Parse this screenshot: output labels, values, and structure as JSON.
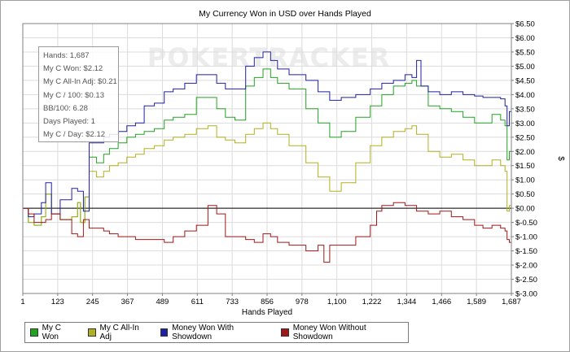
{
  "chart_data": {
    "type": "line",
    "title": "My Currency Won in USD over Hands Played",
    "xlabel": "Hands Played",
    "ylabel": "$",
    "watermark": "POKERTRACKER",
    "xlim": [
      1,
      1687
    ],
    "ylim": [
      -3.0,
      6.5
    ],
    "x_ticks": [
      "1",
      "123",
      "245",
      "367",
      "489",
      "611",
      "733",
      "856",
      "978",
      "1,100",
      "1,222",
      "1,344",
      "1,466",
      "1,589",
      "1,687"
    ],
    "y_ticks": [
      "$6.50",
      "$6.00",
      "$5.50",
      "$5.00",
      "$4.50",
      "$4.00",
      "$3.50",
      "$3.00",
      "$2.50",
      "$2.00",
      "$1.50",
      "$1.00",
      "$0.50",
      "$0.00",
      "$-0.50",
      "$-1.00",
      "$-1.50",
      "$-2.00",
      "$-2.50",
      "$-3.00"
    ],
    "grid": true,
    "legend_position": "bottom",
    "series": [
      {
        "name": "My C Won",
        "color": "#22a322",
        "points": [
          [
            1,
            0
          ],
          [
            20,
            -0.5
          ],
          [
            40,
            -0.6
          ],
          [
            65,
            -0.3
          ],
          [
            80,
            0.5
          ],
          [
            100,
            -0.2
          ],
          [
            130,
            -0.4
          ],
          [
            170,
            -0.3
          ],
          [
            190,
            0.2
          ],
          [
            200,
            -0.5
          ],
          [
            215,
            0.4
          ],
          [
            230,
            1.8
          ],
          [
            255,
            1.6
          ],
          [
            280,
            1.9
          ],
          [
            300,
            2.1
          ],
          [
            330,
            2.3
          ],
          [
            360,
            2.5
          ],
          [
            390,
            2.6
          ],
          [
            420,
            2.7
          ],
          [
            455,
            2.8
          ],
          [
            489,
            3.1
          ],
          [
            520,
            3.2
          ],
          [
            560,
            3.3
          ],
          [
            600,
            3.9
          ],
          [
            640,
            3.9
          ],
          [
            670,
            3.5
          ],
          [
            700,
            3.2
          ],
          [
            733,
            3.1
          ],
          [
            770,
            4.3
          ],
          [
            800,
            4.6
          ],
          [
            830,
            4.9
          ],
          [
            856,
            4.6
          ],
          [
            880,
            4.4
          ],
          [
            920,
            4.2
          ],
          [
            978,
            3.5
          ],
          [
            1020,
            3.0
          ],
          [
            1060,
            2.5
          ],
          [
            1100,
            2.7
          ],
          [
            1150,
            3.2
          ],
          [
            1200,
            3.6
          ],
          [
            1240,
            4.0
          ],
          [
            1280,
            4.3
          ],
          [
            1320,
            4.4
          ],
          [
            1344,
            4.5
          ],
          [
            1360,
            4.3
          ],
          [
            1400,
            3.6
          ],
          [
            1440,
            3.5
          ],
          [
            1480,
            3.4
          ],
          [
            1520,
            3.2
          ],
          [
            1560,
            3.0
          ],
          [
            1589,
            3.0
          ],
          [
            1620,
            3.3
          ],
          [
            1650,
            3.1
          ],
          [
            1665,
            2.9
          ],
          [
            1672,
            1.7
          ],
          [
            1680,
            2.0
          ],
          [
            1687,
            2.12
          ]
        ]
      },
      {
        "name": "My C All-In Adj",
        "color": "#b0b020",
        "points": [
          [
            1,
            0
          ],
          [
            20,
            -0.5
          ],
          [
            40,
            -0.6
          ],
          [
            65,
            -0.3
          ],
          [
            80,
            0.5
          ],
          [
            100,
            -0.2
          ],
          [
            130,
            -0.4
          ],
          [
            170,
            -0.3
          ],
          [
            190,
            0.2
          ],
          [
            200,
            -0.5
          ],
          [
            215,
            0.4
          ],
          [
            230,
            1.3
          ],
          [
            255,
            1.1
          ],
          [
            280,
            1.3
          ],
          [
            300,
            1.5
          ],
          [
            330,
            1.6
          ],
          [
            360,
            1.8
          ],
          [
            390,
            1.9
          ],
          [
            420,
            2.1
          ],
          [
            455,
            2.2
          ],
          [
            489,
            2.4
          ],
          [
            520,
            2.5
          ],
          [
            560,
            2.6
          ],
          [
            600,
            2.8
          ],
          [
            640,
            2.9
          ],
          [
            670,
            2.5
          ],
          [
            700,
            2.4
          ],
          [
            733,
            2.3
          ],
          [
            770,
            2.6
          ],
          [
            800,
            2.8
          ],
          [
            830,
            3.0
          ],
          [
            856,
            2.8
          ],
          [
            880,
            2.6
          ],
          [
            920,
            2.2
          ],
          [
            978,
            1.6
          ],
          [
            1020,
            1.1
          ],
          [
            1060,
            0.6
          ],
          [
            1100,
            0.9
          ],
          [
            1150,
            1.6
          ],
          [
            1200,
            2.2
          ],
          [
            1240,
            2.5
          ],
          [
            1280,
            2.7
          ],
          [
            1320,
            2.8
          ],
          [
            1344,
            2.9
          ],
          [
            1360,
            2.6
          ],
          [
            1400,
            2.0
          ],
          [
            1440,
            1.8
          ],
          [
            1480,
            1.9
          ],
          [
            1520,
            1.7
          ],
          [
            1560,
            1.5
          ],
          [
            1589,
            1.5
          ],
          [
            1620,
            1.7
          ],
          [
            1650,
            1.5
          ],
          [
            1665,
            1.3
          ],
          [
            1672,
            -0.1
          ],
          [
            1680,
            0.1
          ],
          [
            1687,
            0.21
          ]
        ]
      },
      {
        "name": "Money Won With Showdown",
        "color": "#2020a0",
        "points": [
          [
            1,
            0
          ],
          [
            20,
            -0.3
          ],
          [
            40,
            -0.2
          ],
          [
            65,
            0.2
          ],
          [
            80,
            0.9
          ],
          [
            100,
            -0.2
          ],
          [
            130,
            0.3
          ],
          [
            170,
            0.7
          ],
          [
            190,
            0.6
          ],
          [
            210,
            -0.1
          ],
          [
            230,
            2.3
          ],
          [
            255,
            2.3
          ],
          [
            280,
            2.5
          ],
          [
            300,
            2.6
          ],
          [
            330,
            2.7
          ],
          [
            360,
            2.9
          ],
          [
            390,
            3.0
          ],
          [
            420,
            3.6
          ],
          [
            455,
            3.7
          ],
          [
            489,
            4.1
          ],
          [
            520,
            4.2
          ],
          [
            560,
            4.4
          ],
          [
            600,
            4.7
          ],
          [
            640,
            4.7
          ],
          [
            670,
            4.4
          ],
          [
            700,
            4.2
          ],
          [
            733,
            4.2
          ],
          [
            770,
            5.0
          ],
          [
            800,
            5.3
          ],
          [
            830,
            5.5
          ],
          [
            856,
            5.2
          ],
          [
            880,
            4.9
          ],
          [
            920,
            4.7
          ],
          [
            978,
            4.5
          ],
          [
            1020,
            4.1
          ],
          [
            1060,
            3.8
          ],
          [
            1100,
            3.9
          ],
          [
            1150,
            4.0
          ],
          [
            1200,
            4.2
          ],
          [
            1240,
            4.4
          ],
          [
            1280,
            4.5
          ],
          [
            1320,
            4.7
          ],
          [
            1344,
            4.6
          ],
          [
            1360,
            5.2
          ],
          [
            1375,
            4.3
          ],
          [
            1400,
            4.1
          ],
          [
            1440,
            4.0
          ],
          [
            1480,
            4.1
          ],
          [
            1520,
            4.0
          ],
          [
            1560,
            3.95
          ],
          [
            1589,
            3.9
          ],
          [
            1620,
            3.9
          ],
          [
            1650,
            3.85
          ],
          [
            1665,
            3.6
          ],
          [
            1672,
            2.9
          ],
          [
            1680,
            3.4
          ],
          [
            1687,
            3.4
          ]
        ]
      },
      {
        "name": "Money Won Without Showdown",
        "color": "#a01818",
        "points": [
          [
            1,
            0
          ],
          [
            20,
            -0.2
          ],
          [
            40,
            -0.5
          ],
          [
            65,
            -0.5
          ],
          [
            80,
            -0.4
          ],
          [
            100,
            -0.2
          ],
          [
            130,
            -0.4
          ],
          [
            170,
            -0.9
          ],
          [
            190,
            -1.0
          ],
          [
            210,
            -0.4
          ],
          [
            230,
            -0.7
          ],
          [
            255,
            -0.7
          ],
          [
            280,
            -0.8
          ],
          [
            300,
            -0.9
          ],
          [
            330,
            -1.0
          ],
          [
            360,
            -1.0
          ],
          [
            390,
            -1.1
          ],
          [
            420,
            -1.1
          ],
          [
            455,
            -1.1
          ],
          [
            489,
            -1.2
          ],
          [
            520,
            -1.0
          ],
          [
            560,
            -0.8
          ],
          [
            600,
            -0.6
          ],
          [
            640,
            0.1
          ],
          [
            670,
            -0.2
          ],
          [
            700,
            -1.0
          ],
          [
            733,
            -1.0
          ],
          [
            770,
            -1.1
          ],
          [
            800,
            -1.2
          ],
          [
            830,
            -0.9
          ],
          [
            856,
            -1.0
          ],
          [
            880,
            -1.2
          ],
          [
            920,
            -1.3
          ],
          [
            978,
            -1.5
          ],
          [
            1020,
            -1.3
          ],
          [
            1040,
            -1.9
          ],
          [
            1060,
            -1.3
          ],
          [
            1100,
            -1.3
          ],
          [
            1150,
            -1.0
          ],
          [
            1200,
            -0.6
          ],
          [
            1222,
            -0.1
          ],
          [
            1240,
            0.1
          ],
          [
            1280,
            0.2
          ],
          [
            1320,
            0.1
          ],
          [
            1344,
            0.1
          ],
          [
            1360,
            -0.1
          ],
          [
            1400,
            -0.2
          ],
          [
            1440,
            -0.1
          ],
          [
            1480,
            -0.3
          ],
          [
            1520,
            -0.4
          ],
          [
            1560,
            -0.6
          ],
          [
            1589,
            -0.7
          ],
          [
            1620,
            -0.6
          ],
          [
            1650,
            -0.7
          ],
          [
            1665,
            -0.8
          ],
          [
            1672,
            -1.1
          ],
          [
            1680,
            -1.2
          ],
          [
            1687,
            -1.22
          ]
        ]
      }
    ]
  },
  "stats": {
    "hands": "Hands: 1,687",
    "won": "My C Won: $2.12",
    "allin": "My C All-In Adj: $0.21",
    "per100": "My C / 100: $0.13",
    "bb100": "BB/100: 6.28",
    "days": "Days Played: 1",
    "perday": "My C / Day: $2.12"
  }
}
